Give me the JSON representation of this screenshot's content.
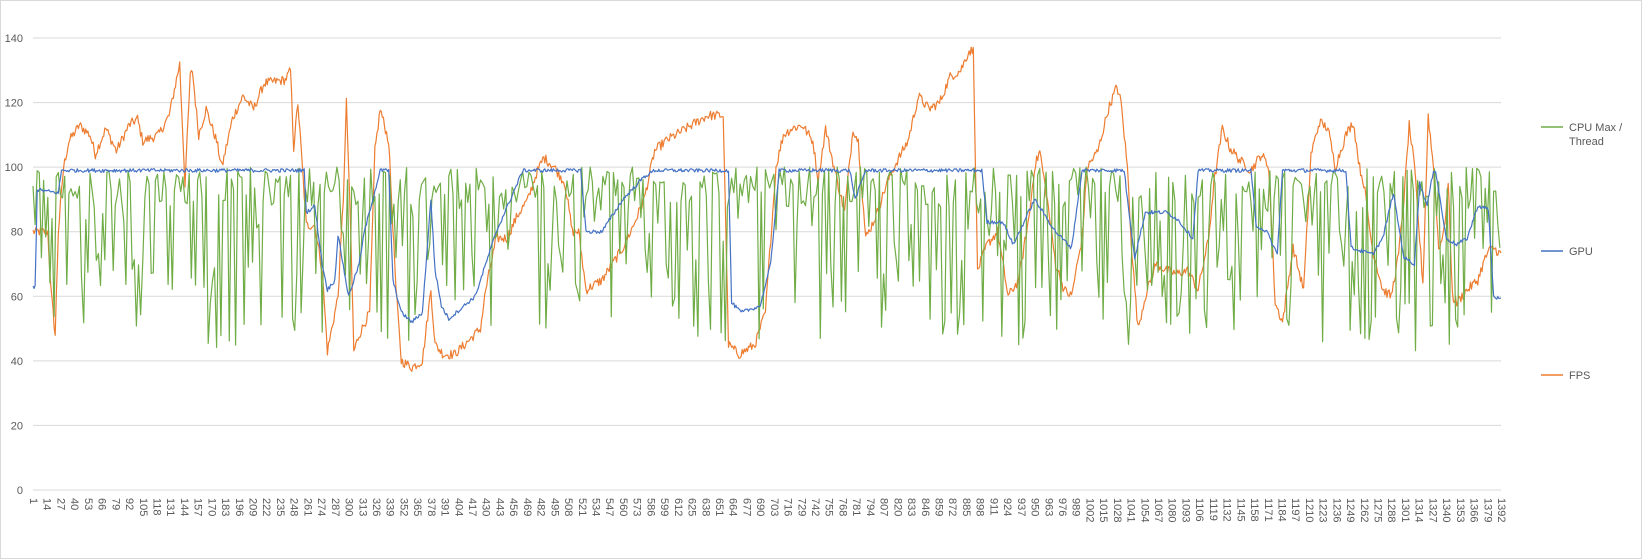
{
  "chart_data": {
    "type": "line",
    "title": "",
    "xlabel": "",
    "ylabel": "",
    "ylim": [
      0,
      140
    ],
    "y_ticks": [
      0,
      20,
      40,
      60,
      80,
      100,
      120,
      140
    ],
    "x_range": [
      1,
      1392
    ],
    "x_tick_step": 13,
    "grid": "horizontal",
    "legend_position": "right",
    "series": [
      {
        "name": "CPU Max / Thread",
        "color": "#70ad47",
        "style": "oscillating samples",
        "breakpoints": [
          [
            1,
            85
          ],
          [
            40,
            75
          ],
          [
            100,
            78
          ],
          [
            150,
            70
          ],
          [
            200,
            72
          ],
          [
            260,
            75
          ],
          [
            300,
            78
          ],
          [
            350,
            72
          ],
          [
            400,
            75
          ],
          [
            450,
            76
          ],
          [
            500,
            77
          ],
          [
            550,
            76
          ],
          [
            600,
            75
          ],
          [
            650,
            72
          ],
          [
            700,
            74
          ],
          [
            750,
            74
          ],
          [
            800,
            75
          ],
          [
            850,
            74
          ],
          [
            900,
            73
          ],
          [
            950,
            72
          ],
          [
            1000,
            74
          ],
          [
            1050,
            72
          ],
          [
            1100,
            73
          ],
          [
            1150,
            72
          ],
          [
            1200,
            73
          ],
          [
            1250,
            72
          ],
          [
            1300,
            70
          ],
          [
            1350,
            72
          ],
          [
            1392,
            75
          ]
        ]
      },
      {
        "name": "GPU",
        "color": "#4472c4",
        "breakpoints": [
          [
            1,
            63
          ],
          [
            3,
            63
          ],
          [
            5,
            93
          ],
          [
            25,
            92
          ],
          [
            28,
            99
          ],
          [
            258,
            99
          ],
          [
            260,
            86
          ],
          [
            268,
            88
          ],
          [
            275,
            70
          ],
          [
            280,
            62
          ],
          [
            287,
            65
          ],
          [
            290,
            79
          ],
          [
            300,
            60
          ],
          [
            310,
            70
          ],
          [
            315,
            80
          ],
          [
            330,
            99
          ],
          [
            338,
            99
          ],
          [
            342,
            65
          ],
          [
            350,
            55
          ],
          [
            360,
            52
          ],
          [
            370,
            55
          ],
          [
            378,
            90
          ],
          [
            382,
            68
          ],
          [
            388,
            57
          ],
          [
            395,
            53
          ],
          [
            420,
            60
          ],
          [
            440,
            80
          ],
          [
            460,
            95
          ],
          [
            465,
            99
          ],
          [
            520,
            99
          ],
          [
            525,
            80
          ],
          [
            540,
            80
          ],
          [
            560,
            90
          ],
          [
            580,
            97
          ],
          [
            590,
            99
          ],
          [
            660,
            99
          ],
          [
            663,
            58
          ],
          [
            672,
            55
          ],
          [
            690,
            57
          ],
          [
            700,
            70
          ],
          [
            708,
            99
          ],
          [
            775,
            99
          ],
          [
            780,
            90
          ],
          [
            790,
            99
          ],
          [
            900,
            99
          ],
          [
            905,
            83
          ],
          [
            920,
            83
          ],
          [
            930,
            76
          ],
          [
            950,
            90
          ],
          [
            960,
            85
          ],
          [
            970,
            80
          ],
          [
            985,
            75
          ],
          [
            995,
            99
          ],
          [
            1035,
            99
          ],
          [
            1038,
            90
          ],
          [
            1045,
            72
          ],
          [
            1055,
            86
          ],
          [
            1075,
            86
          ],
          [
            1085,
            84
          ],
          [
            1100,
            78
          ],
          [
            1105,
            99
          ],
          [
            1155,
            99
          ],
          [
            1160,
            82
          ],
          [
            1170,
            80
          ],
          [
            1180,
            73
          ],
          [
            1185,
            99
          ],
          [
            1245,
            99
          ],
          [
            1250,
            75
          ],
          [
            1270,
            73
          ],
          [
            1280,
            78
          ],
          [
            1290,
            92
          ],
          [
            1300,
            72
          ],
          [
            1310,
            70
          ],
          [
            1315,
            95
          ],
          [
            1322,
            88
          ],
          [
            1328,
            99
          ],
          [
            1330,
            99
          ],
          [
            1340,
            78
          ],
          [
            1350,
            76
          ],
          [
            1360,
            78
          ],
          [
            1370,
            88
          ],
          [
            1380,
            87
          ],
          [
            1385,
            60
          ],
          [
            1392,
            59
          ]
        ]
      },
      {
        "name": "FPS",
        "color": "#ed7d31",
        "breakpoints": [
          [
            1,
            80
          ],
          [
            5,
            80
          ],
          [
            15,
            80
          ],
          [
            18,
            62
          ],
          [
            22,
            48
          ],
          [
            25,
            80
          ],
          [
            30,
            100
          ],
          [
            35,
            108
          ],
          [
            45,
            113
          ],
          [
            55,
            110
          ],
          [
            60,
            104
          ],
          [
            70,
            112
          ],
          [
            80,
            105
          ],
          [
            92,
            113
          ],
          [
            100,
            115
          ],
          [
            105,
            108
          ],
          [
            120,
            110
          ],
          [
            130,
            116
          ],
          [
            140,
            132
          ],
          [
            145,
            95
          ],
          [
            150,
            128
          ],
          [
            152,
            130
          ],
          [
            158,
            110
          ],
          [
            165,
            118
          ],
          [
            175,
            108
          ],
          [
            180,
            100
          ],
          [
            190,
            115
          ],
          [
            200,
            122
          ],
          [
            210,
            118
          ],
          [
            220,
            126
          ],
          [
            240,
            127
          ],
          [
            245,
            130
          ],
          [
            248,
            106
          ],
          [
            252,
            120
          ],
          [
            260,
            82
          ],
          [
            268,
            82
          ],
          [
            275,
            68
          ],
          [
            280,
            43
          ],
          [
            290,
            60
          ],
          [
            295,
            90
          ],
          [
            298,
            120
          ],
          [
            302,
            80
          ],
          [
            305,
            43
          ],
          [
            310,
            48
          ],
          [
            320,
            55
          ],
          [
            325,
            105
          ],
          [
            330,
            118
          ],
          [
            338,
            108
          ],
          [
            345,
            62
          ],
          [
            350,
            40
          ],
          [
            360,
            38
          ],
          [
            370,
            40
          ],
          [
            378,
            62
          ],
          [
            382,
            45
          ],
          [
            390,
            42
          ],
          [
            400,
            42
          ],
          [
            410,
            45
          ],
          [
            425,
            50
          ],
          [
            430,
            62
          ],
          [
            440,
            78
          ],
          [
            450,
            78
          ],
          [
            460,
            85
          ],
          [
            470,
            90
          ],
          [
            478,
            98
          ],
          [
            485,
            103
          ],
          [
            495,
            100
          ],
          [
            505,
            95
          ],
          [
            512,
            80
          ],
          [
            518,
            80
          ],
          [
            525,
            62
          ],
          [
            540,
            65
          ],
          [
            550,
            70
          ],
          [
            560,
            75
          ],
          [
            570,
            82
          ],
          [
            580,
            90
          ],
          [
            590,
            105
          ],
          [
            600,
            108
          ],
          [
            610,
            110
          ],
          [
            625,
            113
          ],
          [
            640,
            116
          ],
          [
            655,
            116
          ],
          [
            660,
            45
          ],
          [
            670,
            42
          ],
          [
            685,
            45
          ],
          [
            695,
            55
          ],
          [
            705,
            100
          ],
          [
            712,
            110
          ],
          [
            720,
            112
          ],
          [
            730,
            113
          ],
          [
            740,
            108
          ],
          [
            745,
            96
          ],
          [
            752,
            112
          ],
          [
            760,
            100
          ],
          [
            770,
            86
          ],
          [
            778,
            112
          ],
          [
            783,
            108
          ],
          [
            790,
            78
          ],
          [
            800,
            85
          ],
          [
            810,
            95
          ],
          [
            820,
            102
          ],
          [
            830,
            108
          ],
          [
            840,
            122
          ],
          [
            850,
            118
          ],
          [
            860,
            120
          ],
          [
            870,
            128
          ],
          [
            880,
            130
          ],
          [
            888,
            136
          ],
          [
            892,
            136
          ],
          [
            896,
            68
          ],
          [
            905,
            76
          ],
          [
            915,
            80
          ],
          [
            925,
            60
          ],
          [
            935,
            65
          ],
          [
            945,
            85
          ],
          [
            950,
            100
          ],
          [
            955,
            105
          ],
          [
            962,
            90
          ],
          [
            970,
            70
          ],
          [
            978,
            62
          ],
          [
            985,
            60
          ],
          [
            995,
            78
          ],
          [
            1000,
            100
          ],
          [
            1010,
            105
          ],
          [
            1020,
            118
          ],
          [
            1028,
            125
          ],
          [
            1032,
            120
          ],
          [
            1038,
            100
          ],
          [
            1042,
            75
          ],
          [
            1048,
            50
          ],
          [
            1055,
            60
          ],
          [
            1065,
            70
          ],
          [
            1075,
            68
          ],
          [
            1085,
            67
          ],
          [
            1095,
            68
          ],
          [
            1105,
            62
          ],
          [
            1115,
            78
          ],
          [
            1120,
            95
          ],
          [
            1128,
            112
          ],
          [
            1135,
            106
          ],
          [
            1145,
            102
          ],
          [
            1155,
            99
          ],
          [
            1165,
            104
          ],
          [
            1172,
            100
          ],
          [
            1178,
            58
          ],
          [
            1185,
            52
          ],
          [
            1195,
            75
          ],
          [
            1205,
            62
          ],
          [
            1212,
            104
          ],
          [
            1220,
            114
          ],
          [
            1228,
            112
          ],
          [
            1235,
            100
          ],
          [
            1245,
            110
          ],
          [
            1252,
            114
          ],
          [
            1258,
            100
          ],
          [
            1262,
            95
          ],
          [
            1270,
            75
          ],
          [
            1280,
            62
          ],
          [
            1288,
            60
          ],
          [
            1295,
            73
          ],
          [
            1300,
            90
          ],
          [
            1305,
            113
          ],
          [
            1310,
            100
          ],
          [
            1318,
            64
          ],
          [
            1323,
            116
          ],
          [
            1328,
            100
          ],
          [
            1333,
            75
          ],
          [
            1338,
            80
          ],
          [
            1342,
            95
          ],
          [
            1346,
            60
          ],
          [
            1350,
            58
          ],
          [
            1355,
            60
          ],
          [
            1360,
            62
          ],
          [
            1370,
            65
          ],
          [
            1375,
            70
          ],
          [
            1380,
            74
          ],
          [
            1385,
            75
          ],
          [
            1392,
            73
          ]
        ]
      }
    ]
  }
}
